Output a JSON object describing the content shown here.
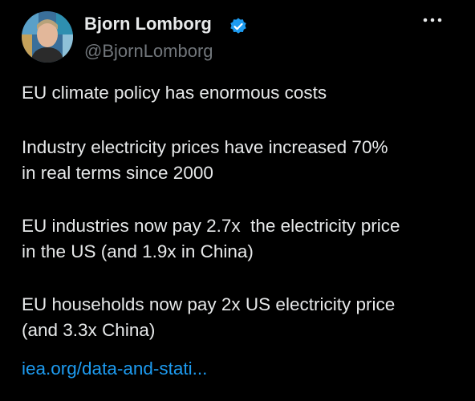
{
  "post": {
    "author": {
      "name": "Bjorn Lomborg",
      "handle": "@BjornLomborg"
    },
    "paragraphs": [
      {
        "lines": [
          "EU climate policy has enormous costs"
        ]
      },
      {
        "lines": [
          "Industry electricity prices have increased 70%",
          "in real terms since 2000"
        ]
      },
      {
        "lines": [
          "EU industries now pay 2.7x  the electricity price",
          "in the US (and 1.9x in China)"
        ]
      },
      {
        "lines": [
          "EU households now pay 2x US electricity price",
          "(and 3.3x China)"
        ]
      }
    ],
    "link": "iea.org/data-and-stati..."
  }
}
